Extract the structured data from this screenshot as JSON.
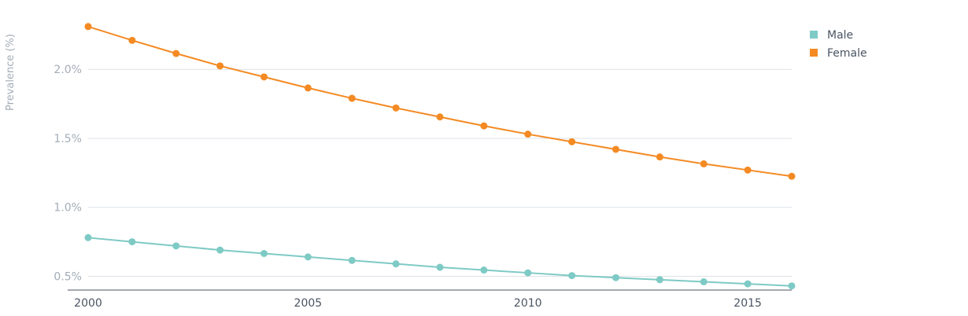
{
  "chart_data": {
    "type": "line",
    "title": "",
    "xlabel": "",
    "ylabel": "Prevalence (%)",
    "x": [
      2000,
      2001,
      2002,
      2003,
      2004,
      2005,
      2006,
      2007,
      2008,
      2009,
      2010,
      2011,
      2012,
      2013,
      2014,
      2015,
      2016
    ],
    "xlim": [
      2000,
      2016
    ],
    "ylim": [
      0.4,
      2.4
    ],
    "x_ticks": [
      2000,
      2005,
      2010,
      2015
    ],
    "x_tick_labels": [
      "2000",
      "2005",
      "2010",
      "2015"
    ],
    "y_ticks": [
      0.5,
      1.0,
      1.5,
      2.0
    ],
    "y_tick_labels": [
      "0.5%",
      "1.0%",
      "1.5%",
      "2.0%"
    ],
    "grid": true,
    "legend_position": "top-right",
    "series": [
      {
        "name": "Male",
        "color": "#7ecac5",
        "values": [
          0.78,
          0.75,
          0.72,
          0.69,
          0.665,
          0.64,
          0.615,
          0.59,
          0.565,
          0.545,
          0.525,
          0.505,
          0.49,
          0.475,
          0.46,
          0.445,
          0.43
        ]
      },
      {
        "name": "Female",
        "color": "#f48a23",
        "values": [
          2.31,
          2.21,
          2.115,
          2.025,
          1.945,
          1.865,
          1.79,
          1.72,
          1.655,
          1.59,
          1.53,
          1.475,
          1.42,
          1.365,
          1.315,
          1.27,
          1.225
        ]
      }
    ]
  }
}
